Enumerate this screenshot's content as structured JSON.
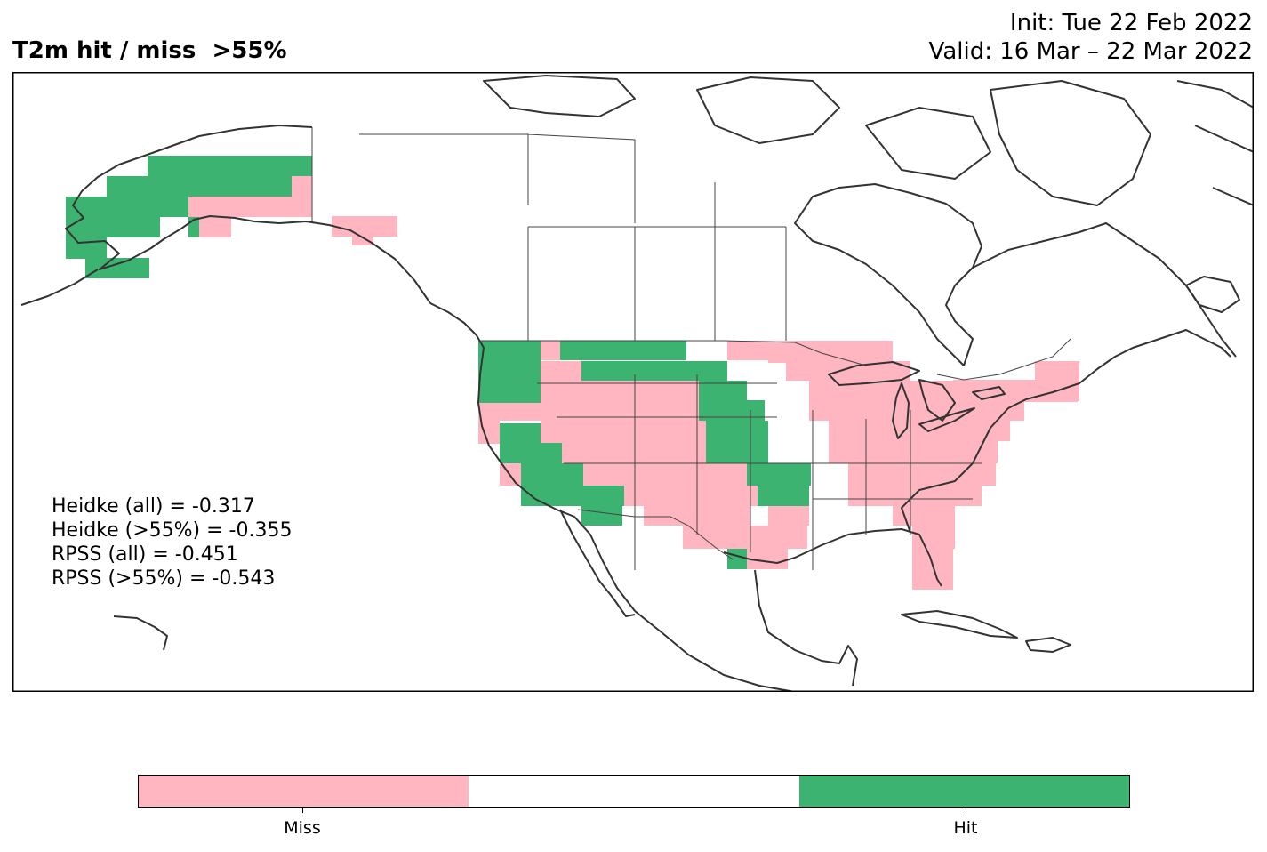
{
  "title": "T2m hit / miss  >55%",
  "init_line": "Init: Tue 22 Feb 2022",
  "valid_line": "Valid: 16 Mar – 22 Mar 2022",
  "scores": [
    "Heidke (all) = -0.317",
    "Heidke (>55%) = -0.355",
    "RPSS (all) = -0.451",
    "RPSS (>55%) = -0.543"
  ],
  "colors": {
    "miss": "#FFB6C1",
    "neutral": "#FFFFFF",
    "hit": "#3CB371",
    "coast": "#333333",
    "border": "#444444"
  },
  "legend": {
    "miss_label": "Miss",
    "hit_label": "Hit"
  }
}
